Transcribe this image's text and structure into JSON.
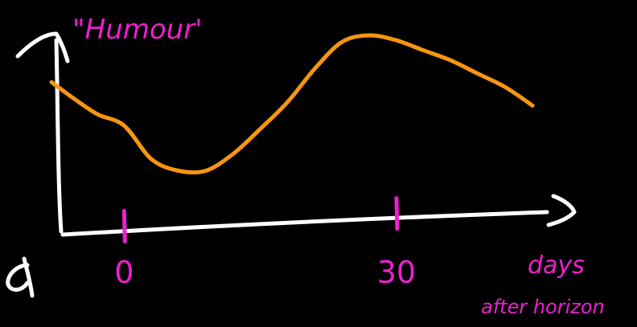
{
  "colors": {
    "background": "#000000",
    "axes": "#ffffff",
    "curve": "#f7960f",
    "annotation": "#ee1fd0"
  },
  "chart_data": {
    "type": "line",
    "title": "",
    "ylabel": "\"Humour'",
    "xlabel": "days",
    "xlabel_line2": "after horizon",
    "x_ticks": [
      {
        "value": 0,
        "label": "0"
      },
      {
        "value": 30,
        "label": "30"
      }
    ],
    "xlim": [
      -8,
      48
    ],
    "ylim": [
      0,
      10
    ],
    "grid": false,
    "legend": "none",
    "series": [
      {
        "x": [
          -8,
          -6,
          -3,
          0,
          3,
          6,
          9,
          12,
          15,
          18,
          21,
          24,
          27,
          30,
          33,
          36,
          39,
          42,
          45
        ],
        "y": [
          7.2,
          6.4,
          5.3,
          4.6,
          2.6,
          1.9,
          1.9,
          2.9,
          4.4,
          6.0,
          8.0,
          9.6,
          10.0,
          9.7,
          9.1,
          8.5,
          7.7,
          6.9,
          5.8
        ]
      }
    ]
  }
}
